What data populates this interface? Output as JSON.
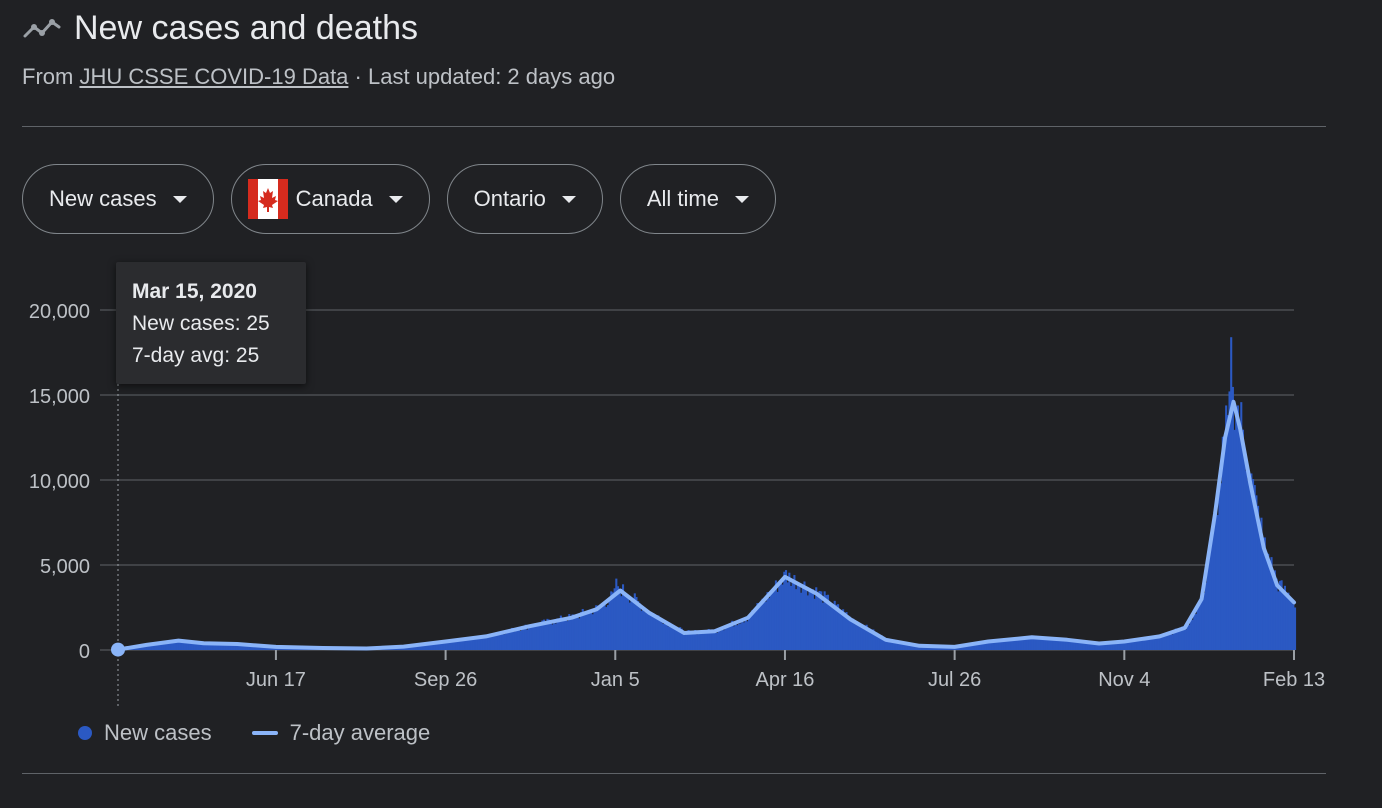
{
  "header": {
    "title": "New cases and deaths",
    "icon": "trending-icon",
    "source_prefix": "From ",
    "source_link": "JHU CSSE COVID-19 Data",
    "updated": " · Last updated: 2 days ago"
  },
  "controls": {
    "metric": "New cases",
    "country": "Canada",
    "country_flag": "canada-flag-icon",
    "region": "Ontario",
    "range": "All time"
  },
  "tooltip": {
    "date": "Mar 15, 2020",
    "cases_line": "New cases: 25",
    "avg_line": "7-day avg: 25"
  },
  "legend": {
    "cases": "New cases",
    "average": "7-day average"
  },
  "colors": {
    "background": "#202124",
    "bars": "#2b59c3",
    "average_line": "#8ab4f8",
    "grid": "#5f6368",
    "text": "#e8eaed"
  },
  "chart_data": {
    "type": "area",
    "ylim": [
      0,
      20000
    ],
    "yticks": [
      0,
      5000,
      10000,
      15000,
      20000
    ],
    "ytick_labels": [
      "0",
      "5,000",
      "10,000",
      "15,000",
      "20,000"
    ],
    "xlim": [
      "2020-03-15",
      "2022-02-13"
    ],
    "xticks": [
      "2020-06-17",
      "2020-09-26",
      "2021-01-05",
      "2021-04-16",
      "2021-07-26",
      "2021-11-04",
      "2022-02-13"
    ],
    "xtick_labels": [
      "Jun 17",
      "Sep 26",
      "Jan 5",
      "Apr 16",
      "Jul 26",
      "Nov 4",
      "Feb 13"
    ],
    "grid": true,
    "highlight": {
      "date": "2020-03-15",
      "value": 25
    },
    "series": [
      {
        "name": "7-day average",
        "points": [
          [
            "2020-03-15",
            25
          ],
          [
            "2020-04-01",
            300
          ],
          [
            "2020-04-20",
            550
          ],
          [
            "2020-05-05",
            400
          ],
          [
            "2020-05-25",
            350
          ],
          [
            "2020-06-17",
            180
          ],
          [
            "2020-07-15",
            120
          ],
          [
            "2020-08-10",
            90
          ],
          [
            "2020-09-01",
            200
          ],
          [
            "2020-09-26",
            500
          ],
          [
            "2020-10-20",
            800
          ],
          [
            "2020-11-15",
            1400
          ],
          [
            "2020-12-10",
            1900
          ],
          [
            "2020-12-25",
            2400
          ],
          [
            "2021-01-08",
            3500
          ],
          [
            "2021-01-25",
            2200
          ],
          [
            "2021-02-15",
            1000
          ],
          [
            "2021-03-05",
            1100
          ],
          [
            "2021-03-25",
            1900
          ],
          [
            "2021-04-16",
            4300
          ],
          [
            "2021-05-05",
            3300
          ],
          [
            "2021-05-25",
            1800
          ],
          [
            "2021-06-15",
            600
          ],
          [
            "2021-07-05",
            250
          ],
          [
            "2021-07-26",
            180
          ],
          [
            "2021-08-15",
            500
          ],
          [
            "2021-09-10",
            750
          ],
          [
            "2021-10-01",
            600
          ],
          [
            "2021-10-20",
            380
          ],
          [
            "2021-11-04",
            500
          ],
          [
            "2021-11-25",
            800
          ],
          [
            "2021-12-10",
            1300
          ],
          [
            "2021-12-20",
            3000
          ],
          [
            "2021-12-28",
            8000
          ],
          [
            "2022-01-03",
            12500
          ],
          [
            "2022-01-08",
            14600
          ],
          [
            "2022-01-12",
            13000
          ],
          [
            "2022-01-18",
            9800
          ],
          [
            "2022-01-26",
            6000
          ],
          [
            "2022-02-03",
            3800
          ],
          [
            "2022-02-13",
            2800
          ]
        ]
      },
      {
        "name": "New cases",
        "peaks": [
          [
            "2021-01-05",
            4200
          ],
          [
            "2021-04-16",
            4700
          ],
          [
            "2022-01-06",
            18400
          ],
          [
            "2022-02-13",
            2500
          ]
        ]
      }
    ]
  }
}
